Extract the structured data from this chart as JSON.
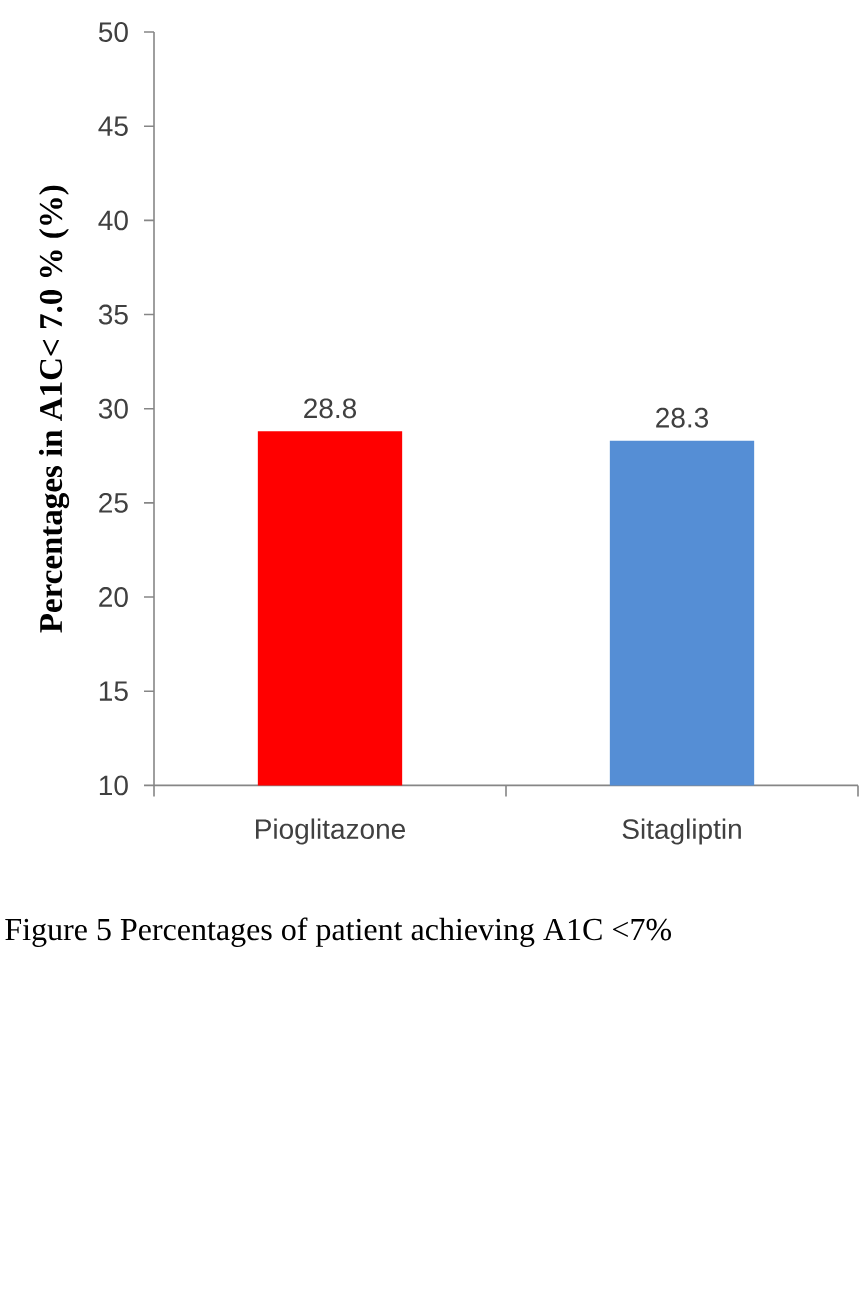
{
  "chart_data": {
    "type": "bar",
    "ylabel": "Percentages in A1C< 7.0 % (%)",
    "categories": [
      "Pioglitazone",
      "Sitagliptin"
    ],
    "values": [
      28.8,
      28.3
    ],
    "colors": [
      "#ff0000",
      "#558ed5"
    ],
    "ylim": [
      10,
      50
    ],
    "yticks": [
      10,
      15,
      20,
      25,
      30,
      35,
      40,
      45,
      50
    ],
    "data_labels": true,
    "annotations": [
      "Figure 5 Percentages of patient achieving A1C <7%"
    ]
  }
}
